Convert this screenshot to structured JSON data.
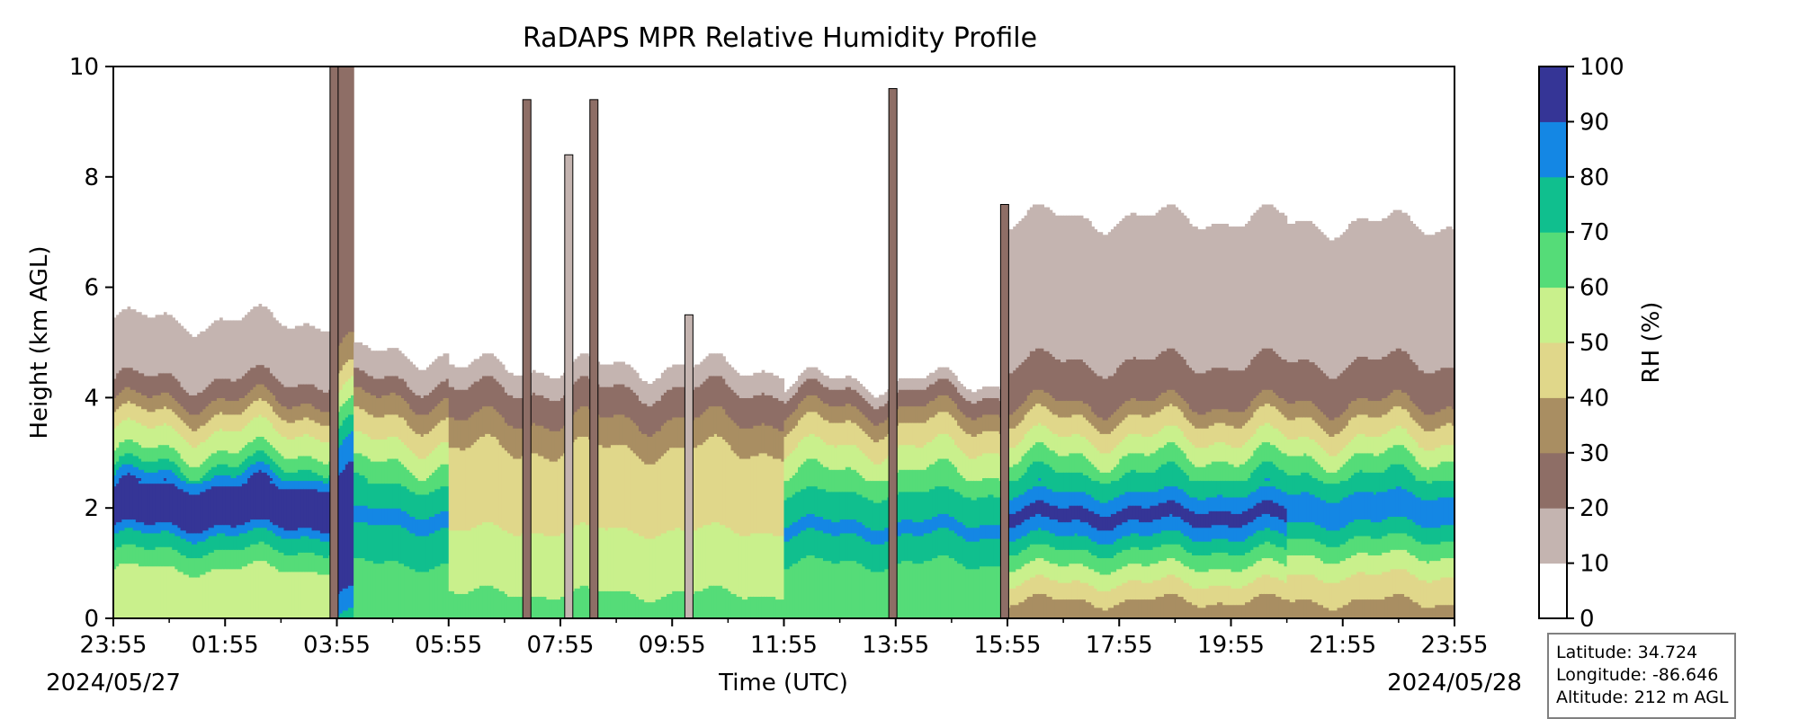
{
  "chart_data": {
    "type": "heatmap",
    "title": "RaDAPS MPR Relative Humidity Profile",
    "xlabel": "Time (UTC)",
    "ylabel": "Height (km AGL)",
    "colorbar_label": "RH (%)",
    "x_ticks": [
      "23:55",
      "01:55",
      "03:55",
      "05:55",
      "07:55",
      "09:55",
      "11:55",
      "13:55",
      "15:55",
      "17:55",
      "19:55",
      "21:55",
      "23:55"
    ],
    "x_dates": [
      "2024/05/27",
      "2024/05/28"
    ],
    "y_ticks": [
      "0",
      "2",
      "4",
      "6",
      "8",
      "10"
    ],
    "ylim": [
      0,
      10
    ],
    "colorbar_ticks": [
      "0",
      "10",
      "20",
      "30",
      "40",
      "50",
      "60",
      "70",
      "80",
      "90",
      "100"
    ],
    "levels": [
      0,
      10,
      20,
      30,
      40,
      50,
      60,
      70,
      80,
      90,
      100
    ],
    "colors": [
      "#ffffff",
      "#c4b4b0",
      "#8e6e66",
      "#a98e62",
      "#e0d78a",
      "#c9f08c",
      "#55dc78",
      "#10bf8e",
      "#1487e4",
      "#353596"
    ],
    "cells": [
      {
        "t": 0.0,
        "x0": 0.0,
        "x1": 4.0,
        "h": [
          0.0,
          0.2,
          0.4,
          0.9,
          1.3,
          1.6,
          1.7,
          2.0,
          2.3,
          2.5,
          2.7,
          2.9,
          3.1,
          3.3,
          3.5,
          3.6,
          3.8,
          3.9,
          4.0,
          4.2,
          4.4,
          4.8,
          6.0
        ],
        "rh": [
          52,
          56,
          52,
          60,
          72,
          83,
          92,
          96,
          95,
          85,
          73,
          65,
          57,
          53,
          47,
          42,
          38,
          33,
          28,
          24,
          18,
          15,
          5
        ]
      },
      {
        "t": 4.0,
        "x0": 4.0,
        "x1": 4.3,
        "h": [
          0.0,
          0.2,
          0.5,
          1.0,
          1.5,
          2.0,
          2.5,
          3.0,
          3.5,
          4.0,
          4.5,
          5.0,
          6.0,
          8.0,
          10.0
        ],
        "rh": [
          75,
          85,
          90,
          95,
          96,
          96,
          92,
          85,
          70,
          55,
          40,
          30,
          25,
          25,
          22
        ]
      },
      {
        "t": 4.3,
        "x0": 4.3,
        "x1": 6.0,
        "h": [
          0.0,
          0.3,
          0.7,
          1.1,
          1.5,
          1.8,
          2.1,
          2.4,
          2.7,
          3.0,
          3.3,
          3.6,
          3.9,
          4.1,
          4.3,
          4.6,
          5.0
        ],
        "rh": [
          65,
          68,
          65,
          72,
          78,
          82,
          78,
          70,
          62,
          55,
          47,
          40,
          32,
          26,
          20,
          14,
          5
        ]
      },
      {
        "t": 6.0,
        "x0": 6.0,
        "x1": 12.0,
        "h": [
          0.0,
          0.3,
          0.7,
          1.0,
          1.3,
          1.6,
          2.0,
          2.4,
          2.8,
          3.2,
          3.5,
          3.8,
          4.1,
          4.4,
          4.7
        ],
        "rh": [
          67,
          62,
          57,
          55,
          52,
          50,
          48,
          46,
          44,
          38,
          32,
          26,
          21,
          15,
          5
        ]
      },
      {
        "t": 12.0,
        "x0": 12.0,
        "x1": 16.0,
        "h": [
          0.0,
          0.3,
          0.6,
          1.0,
          1.3,
          1.6,
          1.9,
          2.2,
          2.5,
          2.9,
          3.2,
          3.5,
          3.8,
          4.1,
          4.4
        ],
        "rh": [
          62,
          66,
          65,
          70,
          76,
          82,
          78,
          72,
          63,
          55,
          47,
          40,
          30,
          20,
          5
        ]
      },
      {
        "t": 16.0,
        "x0": 16.0,
        "x1": 21.0,
        "h": [
          0.0,
          0.4,
          0.8,
          1.1,
          1.4,
          1.6,
          1.8,
          2.0,
          2.2,
          2.5,
          2.8,
          3.1,
          3.4,
          3.7,
          3.9,
          4.3,
          5.5,
          9.0
        ],
        "rh": [
          32,
          42,
          55,
          65,
          76,
          85,
          92,
          90,
          82,
          73,
          64,
          55,
          46,
          38,
          30,
          22,
          15,
          5
        ]
      },
      {
        "t": 21.0,
        "x0": 21.0,
        "x1": 24.0,
        "h": [
          0.0,
          0.5,
          0.9,
          1.2,
          1.5,
          1.8,
          2.1,
          2.4,
          2.7,
          3.0,
          3.3,
          3.6,
          3.9,
          4.3,
          5.5,
          8.8
        ],
        "rh": [
          35,
          43,
          53,
          62,
          72,
          82,
          84,
          76,
          66,
          58,
          48,
          40,
          30,
          22,
          15,
          5
        ]
      }
    ],
    "spikes": [
      {
        "t": 3.95,
        "top": 10.0,
        "rh": 28
      },
      {
        "t": 7.4,
        "top": 9.4,
        "rh": 28
      },
      {
        "t": 8.15,
        "top": 8.4,
        "rh": 18
      },
      {
        "t": 8.6,
        "top": 9.4,
        "rh": 28
      },
      {
        "t": 10.3,
        "top": 5.5,
        "rh": 18
      },
      {
        "t": 13.95,
        "top": 9.6,
        "rh": 28
      },
      {
        "t": 15.95,
        "top": 7.5,
        "rh": 28
      }
    ]
  },
  "info_box": {
    "latitude": "Latitude: 34.724",
    "longitude": "Longitude: -86.646",
    "altitude": "Altitude: 212 m AGL"
  }
}
